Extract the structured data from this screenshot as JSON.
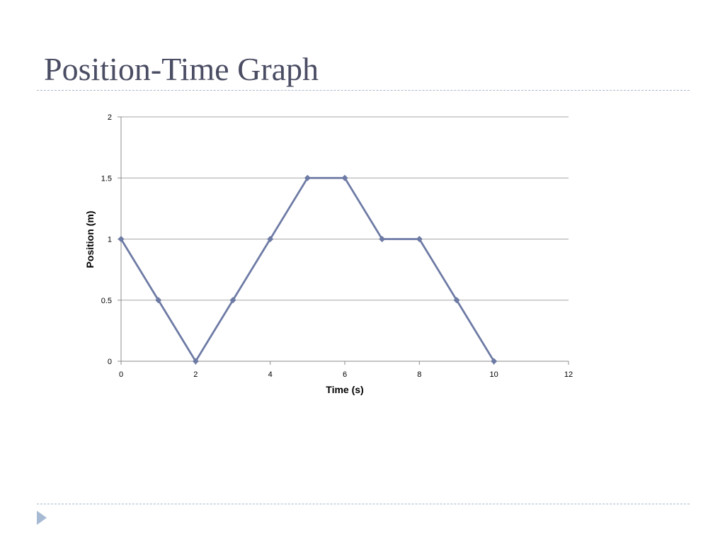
{
  "slide": {
    "title": "Position-Time Graph"
  },
  "colors": {
    "series": "#6d7aa4",
    "gridline": "#a6a6a6",
    "axis": "#8c8c8c",
    "title": "#4a4d63",
    "divider": "#a9b8c9",
    "bullet": "#a6bad3"
  },
  "icons": {
    "bullet": "triangle-right-icon"
  },
  "chart_data": {
    "type": "scatter",
    "mode": "lines+markers",
    "marker": "diamond",
    "title": "",
    "xlabel": "Time (s)",
    "ylabel": "Position (m)",
    "xlim": [
      0,
      12
    ],
    "ylim": [
      0,
      2
    ],
    "xticks": [
      0,
      2,
      4,
      6,
      8,
      10,
      12
    ],
    "yticks": [
      0,
      0.5,
      1,
      1.5,
      2
    ],
    "xtick_labels": [
      "0",
      "2",
      "4",
      "6",
      "8",
      "10",
      "12"
    ],
    "ytick_labels": [
      "0",
      "0.5",
      "1",
      "1.5",
      "2"
    ],
    "grid": "horizontal",
    "legend": "none",
    "series": [
      {
        "x": [
          0,
          1,
          2,
          3,
          4,
          5,
          6,
          7,
          8,
          9,
          10
        ],
        "y": [
          1,
          0.5,
          0,
          0.5,
          1,
          1.5,
          1.5,
          1,
          1,
          0.5,
          0
        ]
      }
    ]
  }
}
